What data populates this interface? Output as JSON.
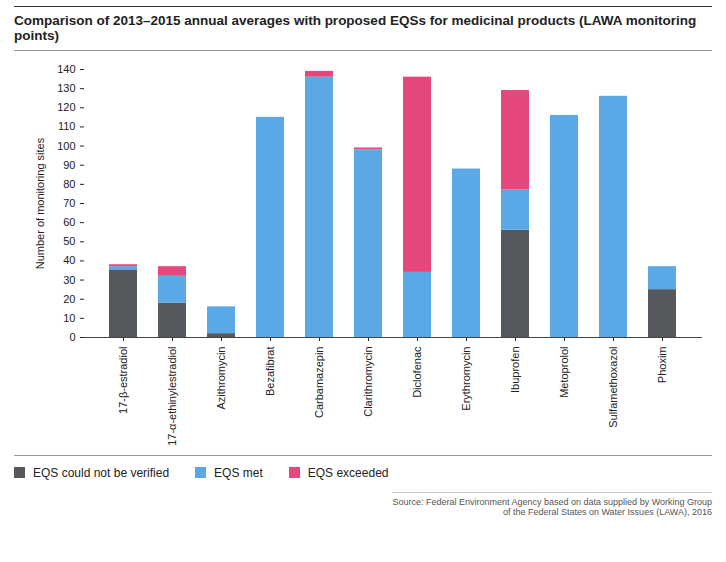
{
  "chart_data": {
    "type": "bar",
    "title": "Comparison of 2013–2015 annual averages with proposed EQSs for medicinal products (LAWA monitoring points)",
    "y_label": "Number of monitoring sites",
    "source": "Source: Federal Environment Agency based on data supplied by Working Group of the Federal States on Water Issues (LAWA), 2016",
    "categories": [
      "17-β-estradiol",
      "17-α-ethinylestradiol",
      "Azithromycin",
      "Bezafibrat",
      "Carbamazepin",
      "Clarithromycin",
      "Diclofenac",
      "Erythromycin",
      "Ibuprofen",
      "Metoprolol",
      "Sulfamethoxazol",
      "Phoxim"
    ],
    "series": [
      {
        "name": "EQS could not be verified",
        "color": "#55585d",
        "values": [
          35,
          18,
          2,
          0,
          0,
          0,
          0,
          0,
          56,
          0,
          0,
          25
        ]
      },
      {
        "name": "EQS met",
        "color": "#5aa8e6",
        "values": [
          2,
          14,
          14,
          115,
          136,
          98,
          34,
          88,
          21,
          116,
          126,
          12
        ]
      },
      {
        "name": "EQS exceeded",
        "color": "#e5467e",
        "values": [
          1,
          5,
          0,
          0,
          3,
          1,
          102,
          0,
          52,
          0,
          0,
          0
        ]
      }
    ],
    "stacked": true,
    "ylim": [
      0,
      140
    ],
    "yticks": [
      0,
      10,
      20,
      30,
      40,
      50,
      60,
      70,
      80,
      90,
      100,
      110,
      120,
      130,
      140
    ],
    "grid": false,
    "legend": "bottom-left"
  }
}
